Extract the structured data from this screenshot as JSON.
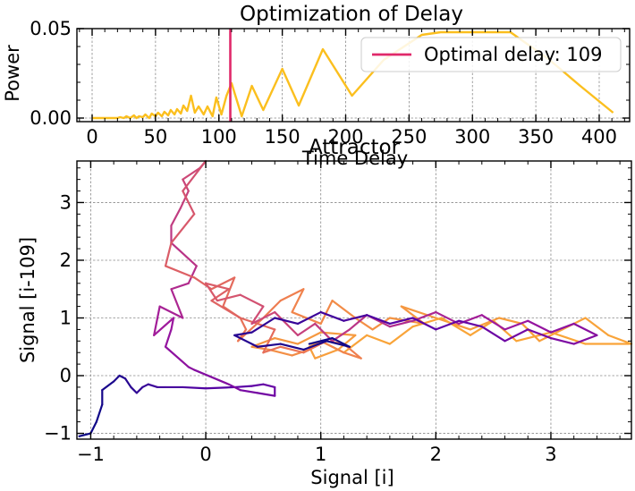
{
  "chart_data": [
    {
      "type": "line",
      "title": "Optimization of Delay",
      "xlabel": "Time Delay",
      "ylabel": "Power",
      "xlim": [
        -12,
        424
      ],
      "ylim": [
        -0.002,
        0.05
      ],
      "xticks": [
        0,
        50,
        100,
        150,
        200,
        250,
        300,
        350,
        400
      ],
      "xtick_labels": [
        "0",
        "50",
        "100",
        "150",
        "200",
        "250",
        "300",
        "350",
        "400"
      ],
      "yticks": [
        0,
        0.05
      ],
      "ytick_labels": [
        "0.00",
        "0.05"
      ],
      "grid": true,
      "legend_position": "top-right",
      "series": [
        {
          "color": "#FBBF1E",
          "x": [
            0,
            5,
            10,
            15,
            20,
            22,
            25,
            27,
            30,
            33,
            35,
            37,
            40,
            42,
            45,
            47,
            50,
            52,
            55,
            57,
            60,
            62,
            65,
            67,
            70,
            72,
            75,
            78,
            81,
            84,
            88,
            91,
            95,
            98,
            102,
            106,
            110,
            118,
            126,
            135,
            150,
            163,
            182,
            205,
            230,
            260,
            275,
            300,
            320,
            330,
            360,
            385,
            411
          ],
          "values": [
            0.0,
            0.0,
            0.0,
            0.0,
            0.0,
            0.0005,
            0.0,
            0.001,
            0.0,
            0.0015,
            0.0,
            0.001,
            0.0005,
            0.002,
            0.0,
            0.0025,
            0.001,
            0.003,
            0.001,
            0.0035,
            0.0015,
            0.0045,
            0.002,
            0.005,
            0.0025,
            0.007,
            0.004,
            0.0125,
            0.003,
            0.0065,
            0.002,
            0.0065,
            0.001,
            0.0115,
            0.002,
            0.0125,
            0.0195,
            0.001,
            0.018,
            0.0045,
            0.0275,
            0.007,
            0.0385,
            0.0125,
            0.0325,
            0.0465,
            0.048,
            0.048,
            0.048,
            0.048,
            0.033,
            0.018,
            0.003
          ]
        }
      ],
      "vline": {
        "x": 109,
        "color": "#E0286A",
        "label": "Optimal delay: 109"
      }
    },
    {
      "type": "line",
      "title": "Attractor",
      "xlabel": "Signal [i]",
      "ylabel": "Signal [i-109]",
      "xlim": [
        -1.12,
        3.7
      ],
      "ylim": [
        -1.1,
        3.72
      ],
      "xticks": [
        -1,
        0,
        1,
        2,
        3
      ],
      "xtick_labels": [
        "−1",
        "0",
        "1",
        "2",
        "3"
      ],
      "yticks": [
        -1,
        0,
        1,
        2,
        3
      ],
      "ytick_labels": [
        "−1",
        "0",
        "1",
        "2",
        "3"
      ],
      "grid": true,
      "colormap": [
        "#0D0887",
        "#5C01A6",
        "#9C179E",
        "#CC4778",
        "#ED7953",
        "#FDB42F"
      ],
      "series": [
        {
          "x": [
            -1.1,
            -1.0,
            -0.95,
            -0.9,
            -0.9,
            -0.8,
            -0.75,
            -0.7,
            -0.65,
            -0.6,
            -0.55,
            -0.5,
            -0.42,
            -0.35,
            -0.2,
            0.0,
            0.25,
            0.4,
            0.5,
            0.6,
            0.6,
            0.45,
            0.3,
            0.2,
            -0.1,
            -0.15,
            -0.35,
            -0.3,
            -0.28,
            -0.45,
            -0.4,
            -0.2,
            -0.3,
            -0.15,
            -0.08,
            -0.3,
            -0.3,
            -0.22,
            -0.15,
            -0.2,
            -0.05,
            0.0,
            -0.2,
            -0.1,
            -0.3,
            -0.35,
            -0.1,
            0.05,
            0.25,
            0.15,
            0.3,
            0.35,
            0.28,
            0.5,
            0.65,
            0.85,
            0.75,
            1.0,
            1.1,
            1.3,
            1.45,
            1.6,
            1.9,
            1.7,
            2.0,
            2.3,
            2.55,
            2.75,
            2.9,
            3.1,
            3.3,
            3.5,
            3.7,
            3.3,
            3.0,
            2.7,
            2.5,
            2.3,
            2.05,
            1.8,
            1.6,
            1.4,
            1.2,
            1.0,
            0.9,
            0.95,
            1.15,
            1.3,
            1.0,
            0.8,
            0.6,
            0.4,
            0.55,
            0.75,
            0.9,
            1.0,
            1.2,
            1.35,
            1.2,
            1.05,
            0.85,
            0.65,
            0.5,
            0.55,
            0.6,
            0.3,
            0.05,
            0.2,
            0.0,
            0.1,
            0.3,
            0.5,
            0.4,
            0.6,
            0.8,
            0.95,
            1.1,
            1.25,
            1.4,
            1.6,
            1.8,
            2.0,
            2.2,
            2.4,
            2.6,
            2.8,
            3.0,
            3.2,
            3.4,
            3.2,
            3.0,
            2.8,
            2.6,
            2.4,
            2.2,
            2.0,
            1.8,
            1.6,
            1.4,
            1.2,
            1.0,
            0.8,
            0.6,
            0.4,
            0.25,
            0.45,
            0.65,
            0.85,
            1.05,
            1.25,
            1.1,
            0.9
          ],
          "y": [
            -1.05,
            -1.0,
            -0.8,
            -0.5,
            -0.25,
            -0.1,
            0.0,
            -0.05,
            -0.2,
            -0.3,
            -0.2,
            -0.15,
            -0.2,
            -0.2,
            -0.2,
            -0.22,
            -0.2,
            -0.18,
            -0.15,
            -0.2,
            -0.35,
            -0.3,
            -0.25,
            -0.15,
            0.1,
            0.15,
            0.5,
            0.8,
            1.0,
            0.7,
            1.2,
            1.0,
            1.5,
            1.6,
            1.9,
            2.3,
            2.6,
            2.9,
            3.2,
            3.4,
            3.6,
            3.72,
            3.2,
            2.8,
            2.3,
            1.9,
            1.7,
            1.5,
            1.7,
            1.2,
            1.0,
            0.8,
            0.6,
            1.0,
            1.3,
            1.5,
            1.1,
            0.9,
            1.3,
            1.0,
            0.8,
            1.0,
            0.9,
            1.2,
            1.0,
            0.8,
            1.0,
            0.9,
            0.6,
            0.8,
            1.0,
            0.7,
            0.55,
            0.55,
            0.75,
            0.6,
            0.95,
            0.7,
            1.0,
            0.85,
            0.55,
            0.7,
            0.4,
            0.6,
            0.5,
            0.3,
            0.45,
            0.7,
            0.75,
            0.55,
            0.65,
            0.5,
            0.45,
            0.35,
            0.45,
            0.6,
            0.4,
            0.3,
            0.55,
            0.6,
            0.4,
            0.5,
            0.4,
            0.6,
            0.8,
            1.0,
            1.3,
            1.5,
            1.6,
            1.3,
            1.4,
            1.2,
            0.9,
            1.1,
            0.7,
            0.9,
            0.6,
            0.8,
            1.05,
            0.85,
            0.95,
            1.1,
            0.9,
            1.05,
            0.8,
            0.95,
            0.75,
            0.9,
            0.7,
            0.55,
            0.65,
            0.8,
            0.6,
            0.85,
            0.95,
            0.8,
            1.0,
            0.9,
            1.05,
            0.95,
            1.1,
            0.9,
            1.0,
            0.75,
            0.7,
            0.5,
            0.55,
            0.45,
            0.6,
            0.5,
            0.65,
            0.55
          ]
        }
      ]
    }
  ]
}
